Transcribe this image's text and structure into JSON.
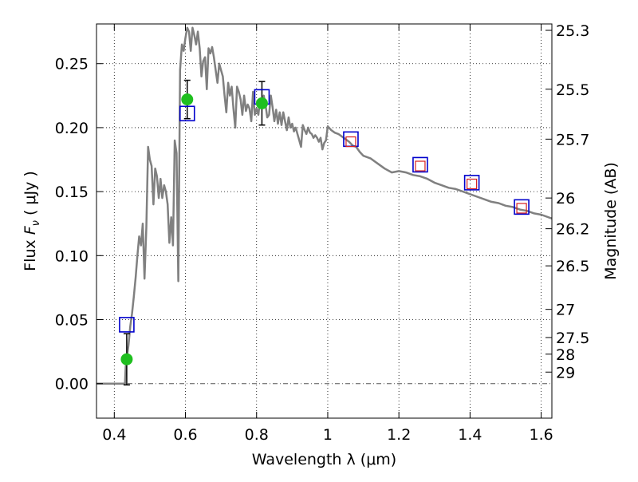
{
  "chart_data": {
    "type": "line",
    "xlabel": "Wavelength  λ (μm)",
    "ylabel": "Flux  Fν  ( μJy )",
    "ylabel_parts": {
      "prefix": "Flux  ",
      "symbol": "F",
      "subscript": "ν",
      "suffix": "  ( μJy )"
    },
    "y2label": "Magnitude (AB)",
    "xlim": [
      0.35,
      1.63
    ],
    "ylim": [
      -0.027,
      0.281
    ],
    "grid": true,
    "x_ticks": [
      0.4,
      0.6,
      0.8,
      1.0,
      1.2,
      1.4,
      1.6
    ],
    "x_tick_labels": [
      "0.4",
      "0.6",
      "0.8",
      "1",
      "1.2",
      "1.4",
      "1.6"
    ],
    "y_ticks": [
      0.0,
      0.05,
      0.1,
      0.15,
      0.2,
      0.25
    ],
    "y_tick_labels": [
      "0.00",
      "0.05",
      "0.10",
      "0.15",
      "0.20",
      "0.25"
    ],
    "y2_ticks": [
      {
        "label": "25.3",
        "flux": 0.276
      },
      {
        "label": "25.5",
        "flux": 0.23
      },
      {
        "label": "25.7",
        "flux": 0.191
      },
      {
        "label": "26",
        "flux": 0.145
      },
      {
        "label": "26.2",
        "flux": 0.121
      },
      {
        "label": "26.5",
        "flux": 0.092
      },
      {
        "label": "27",
        "flux": 0.058
      },
      {
        "label": "27.5",
        "flux": 0.036
      },
      {
        "label": "28",
        "flux": 0.023
      },
      {
        "label": "29",
        "flux": 0.009
      }
    ],
    "zero_line": 0.0,
    "colors": {
      "model": "#808080",
      "observed": "#1fbf1f",
      "model_box": "#0000cc",
      "predicted": "#d62020",
      "errorbar": "#000000"
    },
    "series": [
      {
        "kind": "model-spectrum",
        "x": [
          0.35,
          0.43,
          0.432,
          0.44,
          0.445,
          0.45,
          0.455,
          0.46,
          0.465,
          0.47,
          0.475,
          0.48,
          0.485,
          0.49,
          0.495,
          0.5,
          0.505,
          0.51,
          0.515,
          0.52,
          0.525,
          0.53,
          0.535,
          0.54,
          0.545,
          0.55,
          0.555,
          0.56,
          0.565,
          0.57,
          0.575,
          0.58,
          0.585,
          0.59,
          0.595,
          0.6,
          0.605,
          0.61,
          0.615,
          0.62,
          0.625,
          0.63,
          0.635,
          0.64,
          0.645,
          0.65,
          0.655,
          0.66,
          0.665,
          0.67,
          0.675,
          0.68,
          0.685,
          0.69,
          0.695,
          0.7,
          0.705,
          0.71,
          0.715,
          0.72,
          0.725,
          0.73,
          0.735,
          0.74,
          0.745,
          0.75,
          0.755,
          0.76,
          0.765,
          0.77,
          0.775,
          0.78,
          0.785,
          0.79,
          0.795,
          0.8,
          0.805,
          0.81,
          0.815,
          0.82,
          0.825,
          0.83,
          0.835,
          0.84,
          0.845,
          0.85,
          0.855,
          0.86,
          0.865,
          0.87,
          0.875,
          0.88,
          0.885,
          0.89,
          0.895,
          0.9,
          0.905,
          0.91,
          0.915,
          0.92,
          0.925,
          0.93,
          0.935,
          0.94,
          0.945,
          0.95,
          0.955,
          0.96,
          0.965,
          0.97,
          0.975,
          0.98,
          0.985,
          0.99,
          0.995,
          1.0,
          1.01,
          1.02,
          1.03,
          1.04,
          1.05,
          1.06,
          1.07,
          1.08,
          1.09,
          1.1,
          1.12,
          1.14,
          1.16,
          1.18,
          1.2,
          1.22,
          1.24,
          1.26,
          1.28,
          1.3,
          1.32,
          1.34,
          1.36,
          1.38,
          1.4,
          1.42,
          1.44,
          1.46,
          1.48,
          1.5,
          1.52,
          1.54,
          1.56,
          1.58,
          1.6,
          1.63
        ],
        "y": [
          0.0,
          0.0,
          0.013,
          0.03,
          0.045,
          0.055,
          0.068,
          0.083,
          0.1,
          0.115,
          0.108,
          0.125,
          0.082,
          0.122,
          0.185,
          0.175,
          0.17,
          0.14,
          0.168,
          0.162,
          0.145,
          0.16,
          0.145,
          0.155,
          0.15,
          0.14,
          0.11,
          0.13,
          0.108,
          0.19,
          0.18,
          0.08,
          0.245,
          0.265,
          0.26,
          0.27,
          0.278,
          0.275,
          0.26,
          0.278,
          0.272,
          0.265,
          0.275,
          0.262,
          0.24,
          0.252,
          0.255,
          0.23,
          0.262,
          0.258,
          0.263,
          0.255,
          0.245,
          0.235,
          0.25,
          0.245,
          0.24,
          0.225,
          0.212,
          0.235,
          0.225,
          0.232,
          0.215,
          0.2,
          0.232,
          0.228,
          0.222,
          0.21,
          0.225,
          0.213,
          0.218,
          0.215,
          0.205,
          0.228,
          0.21,
          0.215,
          0.21,
          0.222,
          0.218,
          0.225,
          0.218,
          0.208,
          0.21,
          0.225,
          0.216,
          0.205,
          0.214,
          0.203,
          0.212,
          0.202,
          0.212,
          0.205,
          0.198,
          0.208,
          0.2,
          0.203,
          0.197,
          0.2,
          0.195,
          0.19,
          0.185,
          0.202,
          0.198,
          0.195,
          0.2,
          0.196,
          0.195,
          0.192,
          0.194,
          0.192,
          0.189,
          0.192,
          0.183,
          0.188,
          0.19,
          0.201,
          0.198,
          0.196,
          0.195,
          0.193,
          0.191,
          0.189,
          0.186,
          0.185,
          0.181,
          0.178,
          0.176,
          0.172,
          0.168,
          0.165,
          0.166,
          0.165,
          0.163,
          0.162,
          0.16,
          0.157,
          0.155,
          0.153,
          0.152,
          0.15,
          0.148,
          0.146,
          0.144,
          0.142,
          0.141,
          0.139,
          0.138,
          0.136,
          0.135,
          0.133,
          0.132,
          0.129
        ]
      },
      {
        "kind": "observed-photometry",
        "x": [
          0.435,
          0.605,
          0.815
        ],
        "y": [
          0.019,
          0.222,
          0.219
        ],
        "yerr": [
          0.02,
          0.015,
          0.017
        ]
      },
      {
        "kind": "model-photometry",
        "x": [
          0.435,
          0.605,
          0.815,
          1.065,
          1.26,
          1.405,
          1.545
        ],
        "y": [
          0.046,
          0.211,
          0.224,
          0.191,
          0.171,
          0.157,
          0.138
        ]
      },
      {
        "kind": "predicted-photometry",
        "x": [
          1.065,
          1.26,
          1.405,
          1.545
        ],
        "y": [
          0.189,
          0.17,
          0.156,
          0.137
        ]
      }
    ]
  }
}
